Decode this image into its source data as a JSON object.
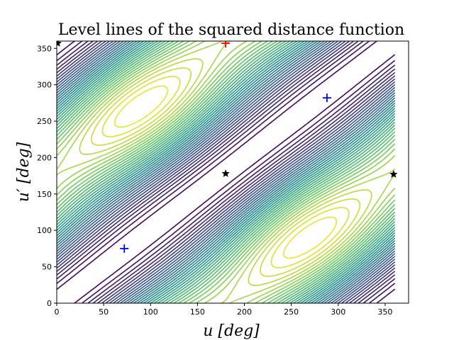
{
  "chart_data": {
    "type": "contour",
    "title": "Level lines of the squared distance function",
    "xlabel": "u [deg]",
    "ylabel": "u′ [deg]",
    "xlim": [
      0,
      375
    ],
    "ylim": [
      0,
      360
    ],
    "x_ticks": [
      0,
      50,
      100,
      150,
      200,
      250,
      300,
      350
    ],
    "y_ticks": [
      0,
      50,
      100,
      150,
      200,
      250,
      300,
      350
    ],
    "grid": false,
    "colormap": "viridis",
    "colors": {
      "low": "#440154",
      "mid": "#21918c",
      "high": "#fde725"
    },
    "plus_markers": {
      "color": "#0000ff",
      "points": [
        {
          "x": 72,
          "y": 75
        },
        {
          "x": 288,
          "y": 282
        }
      ]
    },
    "red_plus_markers": {
      "color": "#ff0000",
      "points": [
        {
          "x": 180,
          "y": 357
        }
      ]
    },
    "star_markers": {
      "color": "#000000",
      "points": [
        {
          "x": 1,
          "y": 357
        },
        {
          "x": 180,
          "y": 178
        },
        {
          "x": 359,
          "y": 177
        }
      ]
    }
  }
}
